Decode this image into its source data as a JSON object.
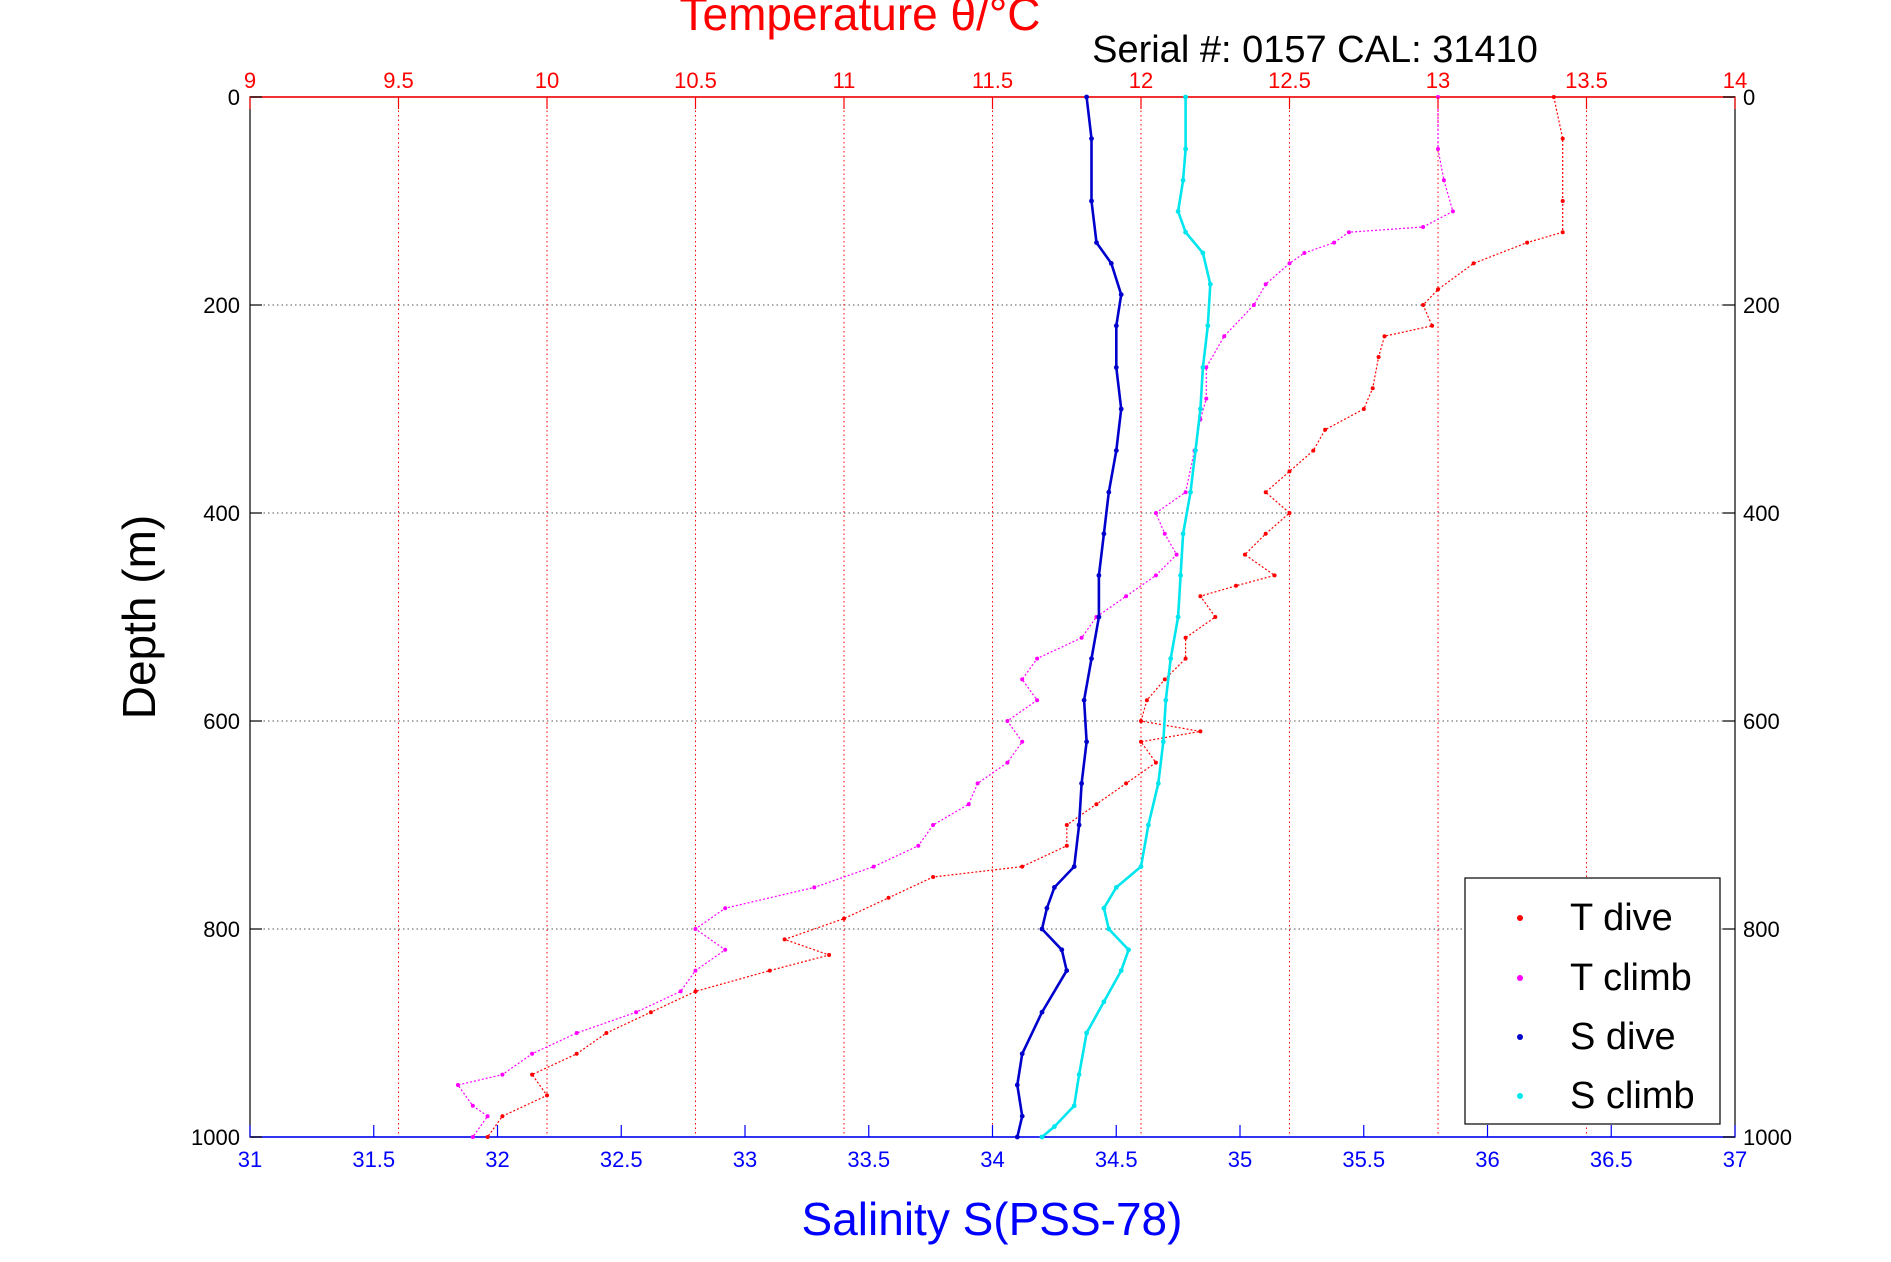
{
  "chart_data": {
    "type": "scatter",
    "title": "Temperature θ/°C",
    "subtitle": "Serial #: 0157  CAL: 31410",
    "ylabel": "Depth (m)",
    "xlabel_bottom": "Salinity S(PSS-78)",
    "xlabel_top": "Temperature θ/°C",
    "ylim": [
      0,
      1000
    ],
    "y_reversed": true,
    "xlim_temperature": [
      9,
      14
    ],
    "xlim_salinity": [
      31,
      37
    ],
    "y_ticks": [
      "0",
      "200",
      "400",
      "600",
      "800",
      "1000"
    ],
    "temperature_ticks": [
      "9",
      "9.5",
      "10",
      "10.5",
      "11",
      "11.5",
      "12",
      "12.5",
      "13",
      "13.5",
      "14"
    ],
    "salinity_ticks": [
      "31",
      "31.5",
      "32",
      "32.5",
      "33",
      "33.5",
      "34",
      "34.5",
      "35",
      "35.5",
      "36",
      "36.5",
      "37"
    ],
    "grid": true,
    "legend_position": "bottom-right",
    "colors": {
      "temperature_axis": "#ff0000",
      "salinity_axis": "#0000ff",
      "t_dive": "#ff0000",
      "t_climb": "#ff00ff",
      "s_dive": "#0000cd",
      "s_climb": "#00e5ee"
    },
    "series": [
      {
        "name": "T dive",
        "axis": "temperature",
        "points": [
          [
            13.39,
            0
          ],
          [
            13.42,
            40
          ],
          [
            13.42,
            100
          ],
          [
            13.42,
            130
          ],
          [
            13.3,
            140
          ],
          [
            13.12,
            160
          ],
          [
            13.0,
            185
          ],
          [
            12.95,
            200
          ],
          [
            12.98,
            220
          ],
          [
            12.82,
            230
          ],
          [
            12.8,
            250
          ],
          [
            12.78,
            280
          ],
          [
            12.75,
            300
          ],
          [
            12.62,
            320
          ],
          [
            12.58,
            340
          ],
          [
            12.5,
            360
          ],
          [
            12.42,
            380
          ],
          [
            12.5,
            400
          ],
          [
            12.42,
            420
          ],
          [
            12.35,
            440
          ],
          [
            12.45,
            460
          ],
          [
            12.32,
            470
          ],
          [
            12.2,
            480
          ],
          [
            12.25,
            500
          ],
          [
            12.15,
            520
          ],
          [
            12.15,
            540
          ],
          [
            12.08,
            560
          ],
          [
            12.02,
            580
          ],
          [
            12.0,
            600
          ],
          [
            12.2,
            610
          ],
          [
            12.0,
            620
          ],
          [
            12.05,
            640
          ],
          [
            11.95,
            660
          ],
          [
            11.85,
            680
          ],
          [
            11.75,
            700
          ],
          [
            11.75,
            720
          ],
          [
            11.6,
            740
          ],
          [
            11.3,
            750
          ],
          [
            11.15,
            770
          ],
          [
            11.0,
            790
          ],
          [
            10.8,
            810
          ],
          [
            10.95,
            825
          ],
          [
            10.75,
            840
          ],
          [
            10.5,
            860
          ],
          [
            10.35,
            880
          ],
          [
            10.2,
            900
          ],
          [
            10.1,
            920
          ],
          [
            9.95,
            940
          ],
          [
            10.0,
            960
          ],
          [
            9.85,
            980
          ],
          [
            9.8,
            1000
          ]
        ]
      },
      {
        "name": "T climb",
        "axis": "temperature",
        "points": [
          [
            13.0,
            0
          ],
          [
            13.0,
            50
          ],
          [
            13.02,
            80
          ],
          [
            13.05,
            110
          ],
          [
            12.95,
            125
          ],
          [
            12.7,
            130
          ],
          [
            12.65,
            140
          ],
          [
            12.55,
            150
          ],
          [
            12.5,
            160
          ],
          [
            12.42,
            180
          ],
          [
            12.38,
            200
          ],
          [
            12.28,
            230
          ],
          [
            12.22,
            260
          ],
          [
            12.22,
            290
          ],
          [
            12.2,
            310
          ],
          [
            12.18,
            340
          ],
          [
            12.15,
            380
          ],
          [
            12.05,
            400
          ],
          [
            12.08,
            420
          ],
          [
            12.12,
            440
          ],
          [
            12.05,
            460
          ],
          [
            11.95,
            480
          ],
          [
            11.85,
            500
          ],
          [
            11.8,
            520
          ],
          [
            11.65,
            540
          ],
          [
            11.6,
            560
          ],
          [
            11.65,
            580
          ],
          [
            11.55,
            600
          ],
          [
            11.6,
            620
          ],
          [
            11.55,
            640
          ],
          [
            11.45,
            660
          ],
          [
            11.42,
            680
          ],
          [
            11.3,
            700
          ],
          [
            11.25,
            720
          ],
          [
            11.1,
            740
          ],
          [
            10.9,
            760
          ],
          [
            10.6,
            780
          ],
          [
            10.5,
            800
          ],
          [
            10.6,
            820
          ],
          [
            10.5,
            840
          ],
          [
            10.45,
            860
          ],
          [
            10.3,
            880
          ],
          [
            10.1,
            900
          ],
          [
            9.95,
            920
          ],
          [
            9.85,
            940
          ],
          [
            9.7,
            950
          ],
          [
            9.75,
            970
          ],
          [
            9.8,
            980
          ],
          [
            9.75,
            1000
          ]
        ]
      },
      {
        "name": "S dive",
        "axis": "salinity",
        "points": [
          [
            34.38,
            0
          ],
          [
            34.4,
            40
          ],
          [
            34.4,
            100
          ],
          [
            34.42,
            140
          ],
          [
            34.48,
            160
          ],
          [
            34.52,
            190
          ],
          [
            34.5,
            220
          ],
          [
            34.5,
            260
          ],
          [
            34.52,
            300
          ],
          [
            34.5,
            340
          ],
          [
            34.47,
            380
          ],
          [
            34.45,
            420
          ],
          [
            34.43,
            460
          ],
          [
            34.43,
            500
          ],
          [
            34.4,
            540
          ],
          [
            34.37,
            580
          ],
          [
            34.38,
            620
          ],
          [
            34.36,
            660
          ],
          [
            34.35,
            700
          ],
          [
            34.33,
            740
          ],
          [
            34.25,
            760
          ],
          [
            34.22,
            780
          ],
          [
            34.2,
            800
          ],
          [
            34.28,
            820
          ],
          [
            34.3,
            840
          ],
          [
            34.2,
            880
          ],
          [
            34.12,
            920
          ],
          [
            34.1,
            950
          ],
          [
            34.12,
            980
          ],
          [
            34.1,
            1000
          ]
        ]
      },
      {
        "name": "S climb",
        "axis": "salinity",
        "points": [
          [
            34.78,
            0
          ],
          [
            34.78,
            50
          ],
          [
            34.77,
            80
          ],
          [
            34.75,
            110
          ],
          [
            34.78,
            130
          ],
          [
            34.85,
            150
          ],
          [
            34.88,
            180
          ],
          [
            34.87,
            220
          ],
          [
            34.85,
            260
          ],
          [
            34.84,
            300
          ],
          [
            34.82,
            340
          ],
          [
            34.8,
            380
          ],
          [
            34.77,
            420
          ],
          [
            34.76,
            460
          ],
          [
            34.75,
            500
          ],
          [
            34.72,
            540
          ],
          [
            34.7,
            580
          ],
          [
            34.69,
            620
          ],
          [
            34.67,
            660
          ],
          [
            34.63,
            700
          ],
          [
            34.6,
            740
          ],
          [
            34.5,
            760
          ],
          [
            34.45,
            780
          ],
          [
            34.47,
            800
          ],
          [
            34.55,
            820
          ],
          [
            34.52,
            840
          ],
          [
            34.45,
            870
          ],
          [
            34.38,
            900
          ],
          [
            34.35,
            940
          ],
          [
            34.33,
            970
          ],
          [
            34.25,
            990
          ],
          [
            34.2,
            1000
          ]
        ]
      }
    ]
  }
}
